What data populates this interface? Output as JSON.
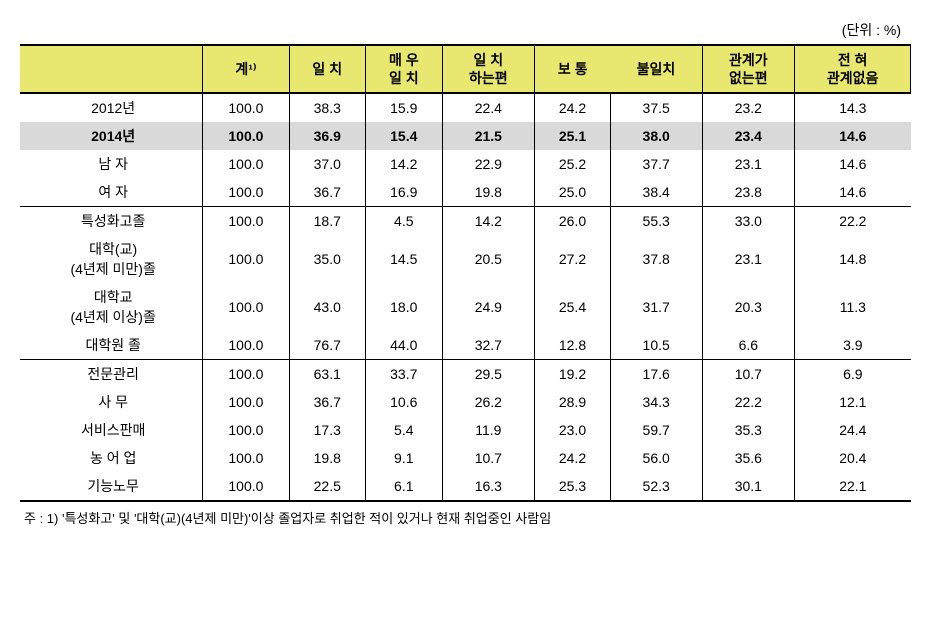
{
  "unit_label": "(단위 : %)",
  "columns": [
    "",
    "계¹⁾",
    "일  치",
    "매  우\n일  치",
    "일  치\n하는편",
    "보  통",
    "불일치",
    "관계가\n없는편",
    "전    혀\n관계없음"
  ],
  "rows": [
    {
      "label": "2012년",
      "values": [
        "100.0",
        "38.3",
        "15.9",
        "22.4",
        "24.2",
        "37.5",
        "23.2",
        "14.3"
      ],
      "bold": false,
      "highlight": false,
      "section_end": false
    },
    {
      "label": "2014년",
      "values": [
        "100.0",
        "36.9",
        "15.4",
        "21.5",
        "25.1",
        "38.0",
        "23.4",
        "14.6"
      ],
      "bold": true,
      "highlight": true,
      "section_end": false
    },
    {
      "label": "남  자",
      "values": [
        "100.0",
        "37.0",
        "14.2",
        "22.9",
        "25.2",
        "37.7",
        "23.1",
        "14.6"
      ],
      "bold": false,
      "highlight": false,
      "section_end": false
    },
    {
      "label": "여  자",
      "values": [
        "100.0",
        "36.7",
        "16.9",
        "19.8",
        "25.0",
        "38.4",
        "23.8",
        "14.6"
      ],
      "bold": false,
      "highlight": false,
      "section_end": true
    },
    {
      "label": "특성화고졸",
      "values": [
        "100.0",
        "18.7",
        "4.5",
        "14.2",
        "26.0",
        "55.3",
        "33.0",
        "22.2"
      ],
      "bold": false,
      "highlight": false,
      "section_end": false
    },
    {
      "label": "대학(교)\n(4년제 미만)졸",
      "values": [
        "100.0",
        "35.0",
        "14.5",
        "20.5",
        "27.2",
        "37.8",
        "23.1",
        "14.8"
      ],
      "bold": false,
      "highlight": false,
      "section_end": false
    },
    {
      "label": "대학교\n(4년제 이상)졸",
      "values": [
        "100.0",
        "43.0",
        "18.0",
        "24.9",
        "25.4",
        "31.7",
        "20.3",
        "11.3"
      ],
      "bold": false,
      "highlight": false,
      "section_end": false
    },
    {
      "label": "대학원 졸",
      "values": [
        "100.0",
        "76.7",
        "44.0",
        "32.7",
        "12.8",
        "10.5",
        "6.6",
        "3.9"
      ],
      "bold": false,
      "highlight": false,
      "section_end": true
    },
    {
      "label": "전문관리",
      "values": [
        "100.0",
        "63.1",
        "33.7",
        "29.5",
        "19.2",
        "17.6",
        "10.7",
        "6.9"
      ],
      "bold": false,
      "highlight": false,
      "section_end": false
    },
    {
      "label": "사    무",
      "values": [
        "100.0",
        "36.7",
        "10.6",
        "26.2",
        "28.9",
        "34.3",
        "22.2",
        "12.1"
      ],
      "bold": false,
      "highlight": false,
      "section_end": false
    },
    {
      "label": "서비스판매",
      "values": [
        "100.0",
        "17.3",
        "5.4",
        "11.9",
        "23.0",
        "59.7",
        "35.3",
        "24.4"
      ],
      "bold": false,
      "highlight": false,
      "section_end": false
    },
    {
      "label": "농 어 업",
      "values": [
        "100.0",
        "19.8",
        "9.1",
        "10.7",
        "24.2",
        "56.0",
        "35.6",
        "20.4"
      ],
      "bold": false,
      "highlight": false,
      "section_end": false
    },
    {
      "label": "기능노무",
      "values": [
        "100.0",
        "22.5",
        "6.1",
        "16.3",
        "25.3",
        "52.3",
        "30.1",
        "22.1"
      ],
      "bold": false,
      "highlight": false,
      "section_end": false
    }
  ],
  "footnote": "주 : 1) '특성화고' 및 '대학(교)(4년제 미만)'이상 졸업자로 취업한 적이 있거나 현재 취업중인 사람임",
  "colors": {
    "header_bg": "#e8e870",
    "highlight_bg": "#d9d9d9",
    "border": "#000000",
    "background": "#ffffff"
  }
}
